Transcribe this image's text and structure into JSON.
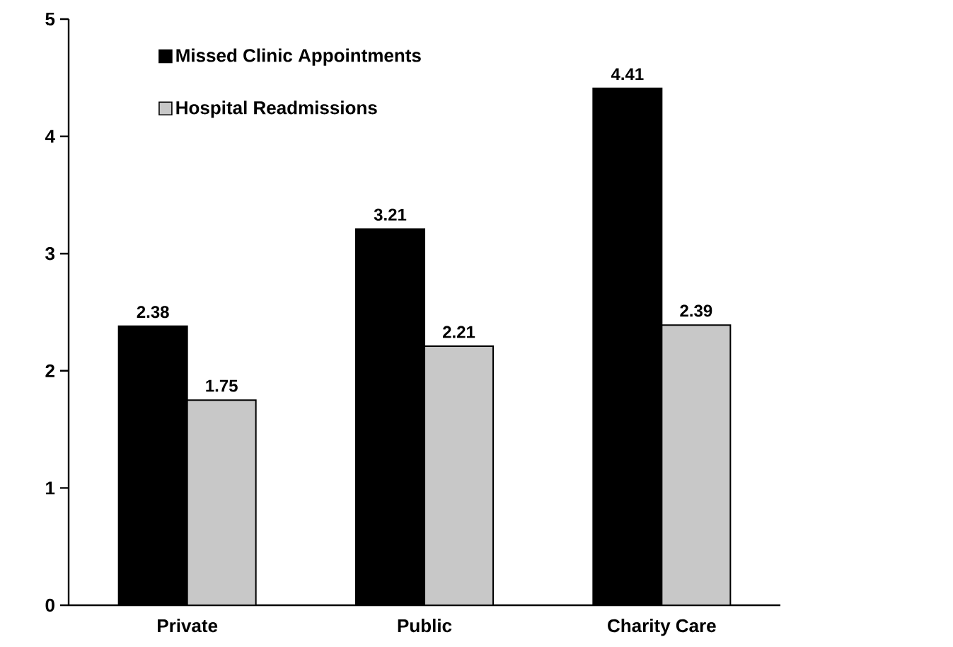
{
  "chart_data": {
    "type": "bar",
    "categories": [
      "Private",
      "Public",
      "Charity Care"
    ],
    "series": [
      {
        "name": "Missed Clinic Appointments",
        "color": "#000000",
        "values": [
          2.38,
          3.21,
          4.41
        ]
      },
      {
        "name": "Hospital Readmissions",
        "color": "#c8c8c8",
        "values": [
          1.75,
          2.21,
          2.39
        ]
      }
    ],
    "ylim": [
      0,
      5
    ],
    "yticks": [
      0,
      1,
      2,
      3,
      4,
      5
    ],
    "data_labels": true,
    "legend": "top left"
  }
}
